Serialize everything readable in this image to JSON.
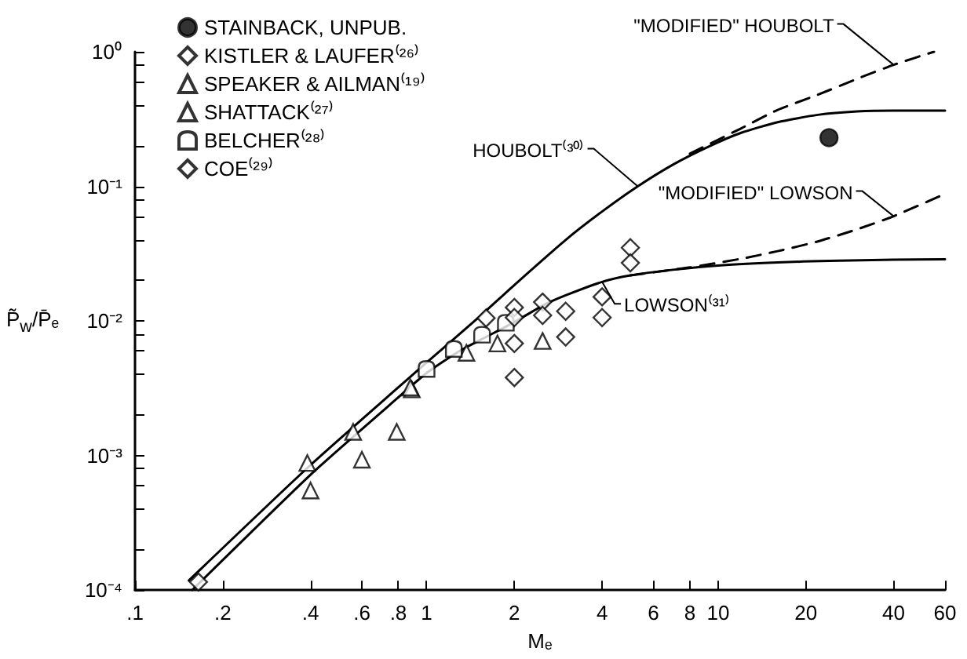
{
  "chart_data": {
    "type": "scatter",
    "xlabel": "Mₑ",
    "ylabel": "P̃$_{w}$/P̄ₑ",
    "log": "xy",
    "grid": false,
    "legend": "top left",
    "xlim": [
      0.1,
      60
    ],
    "ylim": [
      0.0001,
      1
    ],
    "xticks": [
      {
        "value": 0.1,
        "label": ".1"
      },
      {
        "value": 0.2,
        "label": ".2"
      },
      {
        "value": 0.4,
        "label": ".4"
      },
      {
        "value": 0.6,
        "label": ".6"
      },
      {
        "value": 0.8,
        "label": ".8"
      },
      1,
      2,
      4,
      6,
      8,
      10,
      20,
      40,
      60
    ],
    "yticks": [
      {
        "value": 0.0001,
        "label": "10⁻⁴"
      },
      {
        "value": 0.0002,
        "label": null
      },
      {
        "value": 0.0004,
        "label": null
      },
      {
        "value": 0.0006,
        "label": null
      },
      {
        "value": 0.0008,
        "label": null
      },
      {
        "value": 0.001,
        "label": "10⁻³"
      },
      {
        "value": 0.002,
        "label": null
      },
      {
        "value": 0.004,
        "label": null
      },
      {
        "value": 0.006,
        "label": null
      },
      {
        "value": 0.008,
        "label": null
      },
      {
        "value": 0.01,
        "label": "10⁻²"
      },
      {
        "value": 0.02,
        "label": null
      },
      {
        "value": 0.04,
        "label": null
      },
      {
        "value": 0.06,
        "label": null
      },
      {
        "value": 0.08,
        "label": null
      },
      {
        "value": 0.1,
        "label": "10⁻¹"
      },
      {
        "value": 0.2,
        "label": null
      },
      {
        "value": 0.4,
        "label": null
      },
      {
        "value": 0.6,
        "label": null
      },
      {
        "value": 0.8,
        "label": null
      },
      {
        "value": 1,
        "label": "10⁰"
      }
    ],
    "series": [
      {
        "name": "STAINBACK, UNPUB.",
        "marker": "circle",
        "color": "#000000",
        "x": [
          24
        ],
        "values": [
          0.23
        ]
      },
      {
        "name": "KISTLER & LAUFER⁽²⁶⁾",
        "marker": "diamond",
        "color": "#000000",
        "x": [
          0.165,
          1.6,
          2.0,
          2.0,
          3.0,
          3.0,
          4.0,
          4.0,
          5.0,
          5.0
        ],
        "values": [
          0.000115,
          0.0105,
          0.0068,
          0.0038,
          0.0118,
          0.0076,
          0.0151,
          0.0106,
          0.035,
          0.027
        ]
      },
      {
        "name": "SPEAKER & AILMAN⁽¹⁹⁾",
        "marker": "triangle",
        "color": "#000000",
        "x": [
          0.39,
          0.56,
          0.89,
          1.37,
          1.75,
          2.5
        ],
        "values": [
          0.00088,
          0.0015,
          0.0031,
          0.0058,
          0.0068,
          0.0071
        ]
      },
      {
        "name": "SHATTACK⁽²⁷⁾",
        "marker": "triangle",
        "color": "#000000",
        "x": [
          0.4,
          0.6,
          0.79,
          0.88
        ],
        "values": [
          0.00055,
          0.00093,
          0.0015,
          0.0032
        ]
      },
      {
        "name": "BELCHER⁽²⁸⁾",
        "marker": "square",
        "color": "#000000",
        "x": [
          1.0,
          1.24,
          1.55,
          1.87
        ],
        "values": [
          0.0044,
          0.0062,
          0.0079,
          0.0097
        ]
      },
      {
        "name": "COE⁽²⁹⁾",
        "marker": "diamond",
        "color": "#000000",
        "x": [
          2.0,
          2.0,
          2.5,
          2.5
        ],
        "values": [
          0.0126,
          0.0106,
          0.0138,
          0.011
        ]
      },
      {
        "name": "HOUBOLT⁽³⁰⁾",
        "type": "line",
        "marker": "none",
        "line_style": "solid",
        "color": "#000000",
        "x": [
          0.153,
          0.4,
          1,
          1.5,
          2,
          3,
          4,
          5.3,
          7,
          9.4,
          12,
          16,
          22,
          30,
          40,
          60
        ],
        "values": [
          0.000118,
          0.00085,
          0.0049,
          0.0105,
          0.0185,
          0.04,
          0.065,
          0.1,
          0.145,
          0.2,
          0.25,
          0.3,
          0.34,
          0.36,
          0.365,
          0.365
        ]
      },
      {
        "name": "\"MODIFIED\" HOUBOLT",
        "type": "line",
        "marker": "none",
        "line_style": "dashed",
        "color": "#000000",
        "x": [
          8,
          12,
          16,
          22,
          30,
          40,
          55
        ],
        "values": [
          0.175,
          0.27,
          0.37,
          0.48,
          0.63,
          0.8,
          1.0
        ]
      },
      {
        "name": "LOWSON⁽³¹⁾",
        "type": "line",
        "marker": "none",
        "line_style": "solid",
        "color": "#000000",
        "x": [
          0.157,
          0.4,
          0.7,
          1,
          1.3,
          1.6,
          2,
          2.5,
          3,
          4,
          5,
          7,
          10,
          16,
          24,
          40,
          60
        ],
        "values": [
          0.0001,
          0.00072,
          0.0021,
          0.0041,
          0.006,
          0.0076,
          0.0098,
          0.013,
          0.0155,
          0.0195,
          0.0218,
          0.024,
          0.0258,
          0.0272,
          0.028,
          0.0285,
          0.0287
        ]
      },
      {
        "name": "\"MODIFIED\" LOWSON",
        "type": "line",
        "marker": "none",
        "line_style": "dashed",
        "color": "#000000",
        "x": [
          5,
          8,
          12,
          16,
          22,
          30,
          40,
          60
        ],
        "values": [
          0.0218,
          0.025,
          0.029,
          0.033,
          0.039,
          0.048,
          0.06,
          0.088
        ]
      }
    ]
  }
}
